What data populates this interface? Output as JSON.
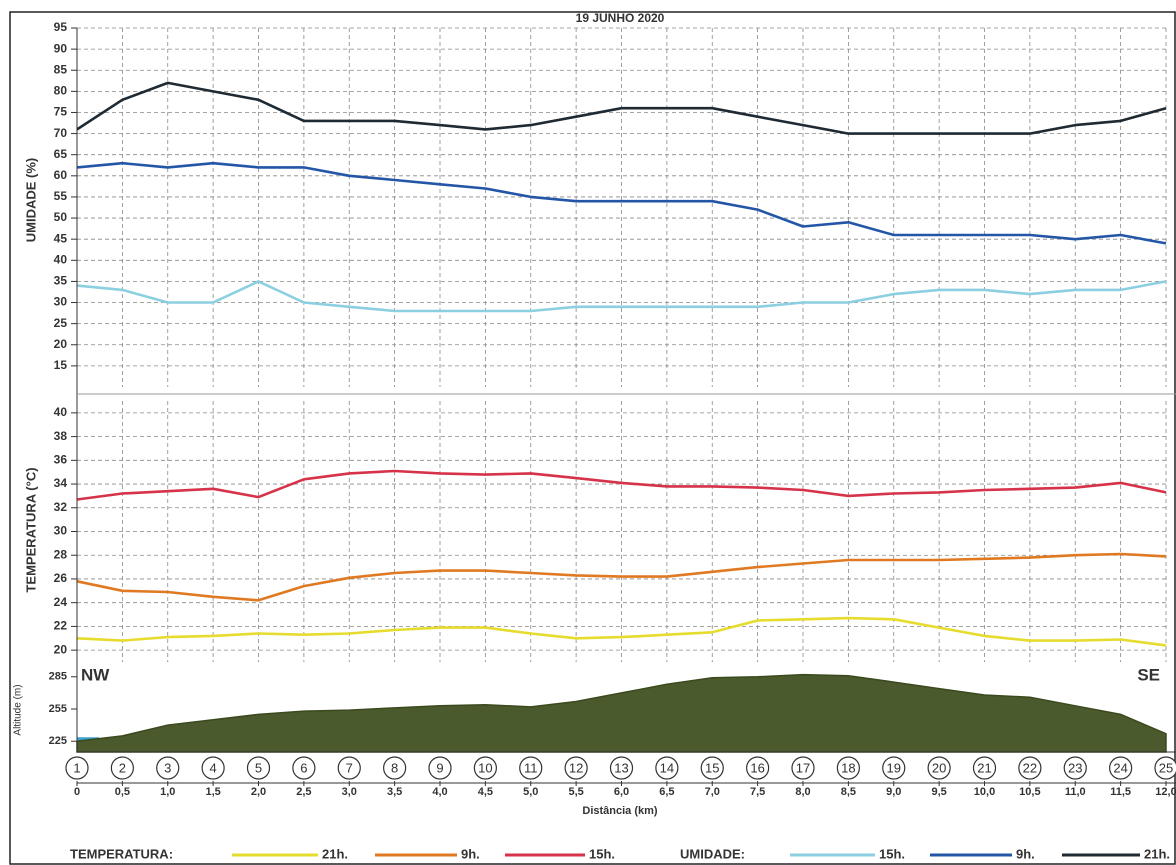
{
  "chart_data": [
    {
      "type": "line",
      "title": "19 JUNHO 2020",
      "ylabel": "UMIDADE (%)",
      "legend_title": "UMIDADE:",
      "x": [
        0,
        0.5,
        1,
        1.5,
        2,
        2.5,
        3,
        3.5,
        4,
        4.5,
        5,
        5.5,
        6,
        6.5,
        7,
        7.5,
        8,
        8.5,
        9,
        9.5,
        10,
        10.5,
        11,
        11.5,
        12
      ],
      "xlim": [
        0,
        12
      ],
      "ylim": [
        10,
        95
      ],
      "yticks": [
        15,
        20,
        25,
        30,
        35,
        40,
        45,
        50,
        55,
        60,
        65,
        70,
        75,
        80,
        85,
        90,
        95
      ],
      "grid": true,
      "series": [
        {
          "name": "15h.",
          "color": "#8ccfe0",
          "values": [
            34,
            33,
            30,
            30,
            35,
            30,
            29,
            28,
            28,
            28,
            28,
            29,
            29,
            29,
            29,
            29,
            30,
            30,
            32,
            33,
            33,
            32,
            33,
            33,
            35
          ]
        },
        {
          "name": "9h.",
          "color": "#2456a8",
          "values": [
            62,
            63,
            62,
            63,
            62,
            62,
            60,
            59,
            58,
            57,
            55,
            54,
            54,
            54,
            54,
            52,
            48,
            49,
            46,
            46,
            46,
            46,
            45,
            46,
            44
          ]
        },
        {
          "name": "21h.",
          "color": "#1f2a33",
          "values": [
            71,
            78,
            82,
            80,
            78,
            73,
            73,
            73,
            72,
            71,
            72,
            74,
            76,
            76,
            76,
            74,
            72,
            70,
            70,
            70,
            70,
            70,
            72,
            73,
            76
          ]
        }
      ]
    },
    {
      "type": "line",
      "ylabel": "TEMPERATURA (°C)",
      "legend_title": "TEMPERATURA:",
      "x": [
        0,
        0.5,
        1,
        1.5,
        2,
        2.5,
        3,
        3.5,
        4,
        4.5,
        5,
        5.5,
        6,
        6.5,
        7,
        7.5,
        8,
        8.5,
        9,
        9.5,
        10,
        10.5,
        11,
        11.5,
        12
      ],
      "xlim": [
        0,
        12
      ],
      "ylim": [
        19,
        41
      ],
      "yticks": [
        20,
        22,
        24,
        26,
        28,
        30,
        32,
        34,
        36,
        38,
        40
      ],
      "grid": true,
      "series": [
        {
          "name": "21h.",
          "color": "#e6dc2e",
          "values": [
            21.0,
            20.8,
            21.1,
            21.2,
            21.4,
            21.3,
            21.4,
            21.7,
            21.9,
            21.9,
            21.4,
            21.0,
            21.1,
            21.3,
            21.5,
            22.5,
            22.6,
            22.7,
            22.6,
            21.9,
            21.2,
            20.8,
            20.8,
            20.9,
            20.4
          ]
        },
        {
          "name": "9h.",
          "color": "#e07a22",
          "values": [
            25.8,
            25.0,
            24.9,
            24.5,
            24.2,
            25.4,
            26.1,
            26.5,
            26.7,
            26.7,
            26.5,
            26.3,
            26.2,
            26.2,
            26.6,
            27.0,
            27.3,
            27.6,
            27.6,
            27.6,
            27.7,
            27.8,
            28.0,
            28.1,
            27.9
          ]
        },
        {
          "name": "15h.",
          "color": "#d6334a",
          "values": [
            32.7,
            33.2,
            33.4,
            33.6,
            32.9,
            34.4,
            34.9,
            35.1,
            34.9,
            34.8,
            34.9,
            34.5,
            34.1,
            33.8,
            33.8,
            33.7,
            33.5,
            33.0,
            33.2,
            33.3,
            33.5,
            33.6,
            33.7,
            34.1,
            33.3
          ]
        }
      ]
    },
    {
      "type": "area",
      "ylabel": "Altitude (m)",
      "xlabel": "Distância (km)",
      "annotations": [
        "NW",
        "SE"
      ],
      "point_labels": [
        "1",
        "2",
        "3",
        "4",
        "5",
        "6",
        "7",
        "8",
        "9",
        "10",
        "11",
        "12",
        "13",
        "14",
        "15",
        "16",
        "17",
        "18",
        "19",
        "20",
        "21",
        "22",
        "23",
        "24",
        "25"
      ],
      "x": [
        0,
        0.5,
        1,
        1.5,
        2,
        2.5,
        3,
        3.5,
        4,
        4.5,
        5,
        5.5,
        6,
        6.5,
        7,
        7.5,
        8,
        8.5,
        9,
        9.5,
        10,
        10.5,
        11,
        11.5,
        12
      ],
      "xlim": [
        0,
        12
      ],
      "ylim": [
        215,
        295
      ],
      "yticks": [
        225,
        255,
        285
      ],
      "color": "#4b5a2c",
      "xticks": [
        0,
        {
          "value": 0.5,
          "label": "0,5"
        },
        {
          "value": 1,
          "label": "1,0"
        },
        {
          "value": 1.5,
          "label": "1,5"
        },
        {
          "value": 2,
          "label": "2,0"
        },
        {
          "value": 2.5,
          "label": "2,5"
        },
        {
          "value": 3,
          "label": "3,0"
        },
        {
          "value": 3.5,
          "label": "3,5"
        },
        {
          "value": 4,
          "label": "4,0"
        },
        {
          "value": 4.5,
          "label": "4,5"
        },
        {
          "value": 5,
          "label": "5,0"
        },
        {
          "value": 5.5,
          "label": "5,5"
        },
        {
          "value": 6,
          "label": "6,0"
        },
        {
          "value": 6.5,
          "label": "6,5"
        },
        {
          "value": 7,
          "label": "7,0"
        },
        {
          "value": 7.5,
          "label": "7,5"
        },
        {
          "value": 8,
          "label": "8,0"
        },
        {
          "value": 8.5,
          "label": "8,5"
        },
        {
          "value": 9,
          "label": "9,0"
        },
        {
          "value": 9.5,
          "label": "9,5"
        },
        {
          "value": 10,
          "label": "10,0"
        },
        {
          "value": 10.5,
          "label": "10,5"
        },
        {
          "value": 11,
          "label": "11,0"
        },
        {
          "value": 11.5,
          "label": "11,5"
        },
        {
          "value": 12,
          "label": "12,0"
        }
      ],
      "values": [
        225,
        230,
        240,
        245,
        250,
        253,
        254,
        256,
        258,
        259,
        257,
        262,
        270,
        278,
        284,
        285,
        287,
        286,
        280,
        274,
        268,
        266,
        258,
        250,
        232
      ]
    }
  ]
}
